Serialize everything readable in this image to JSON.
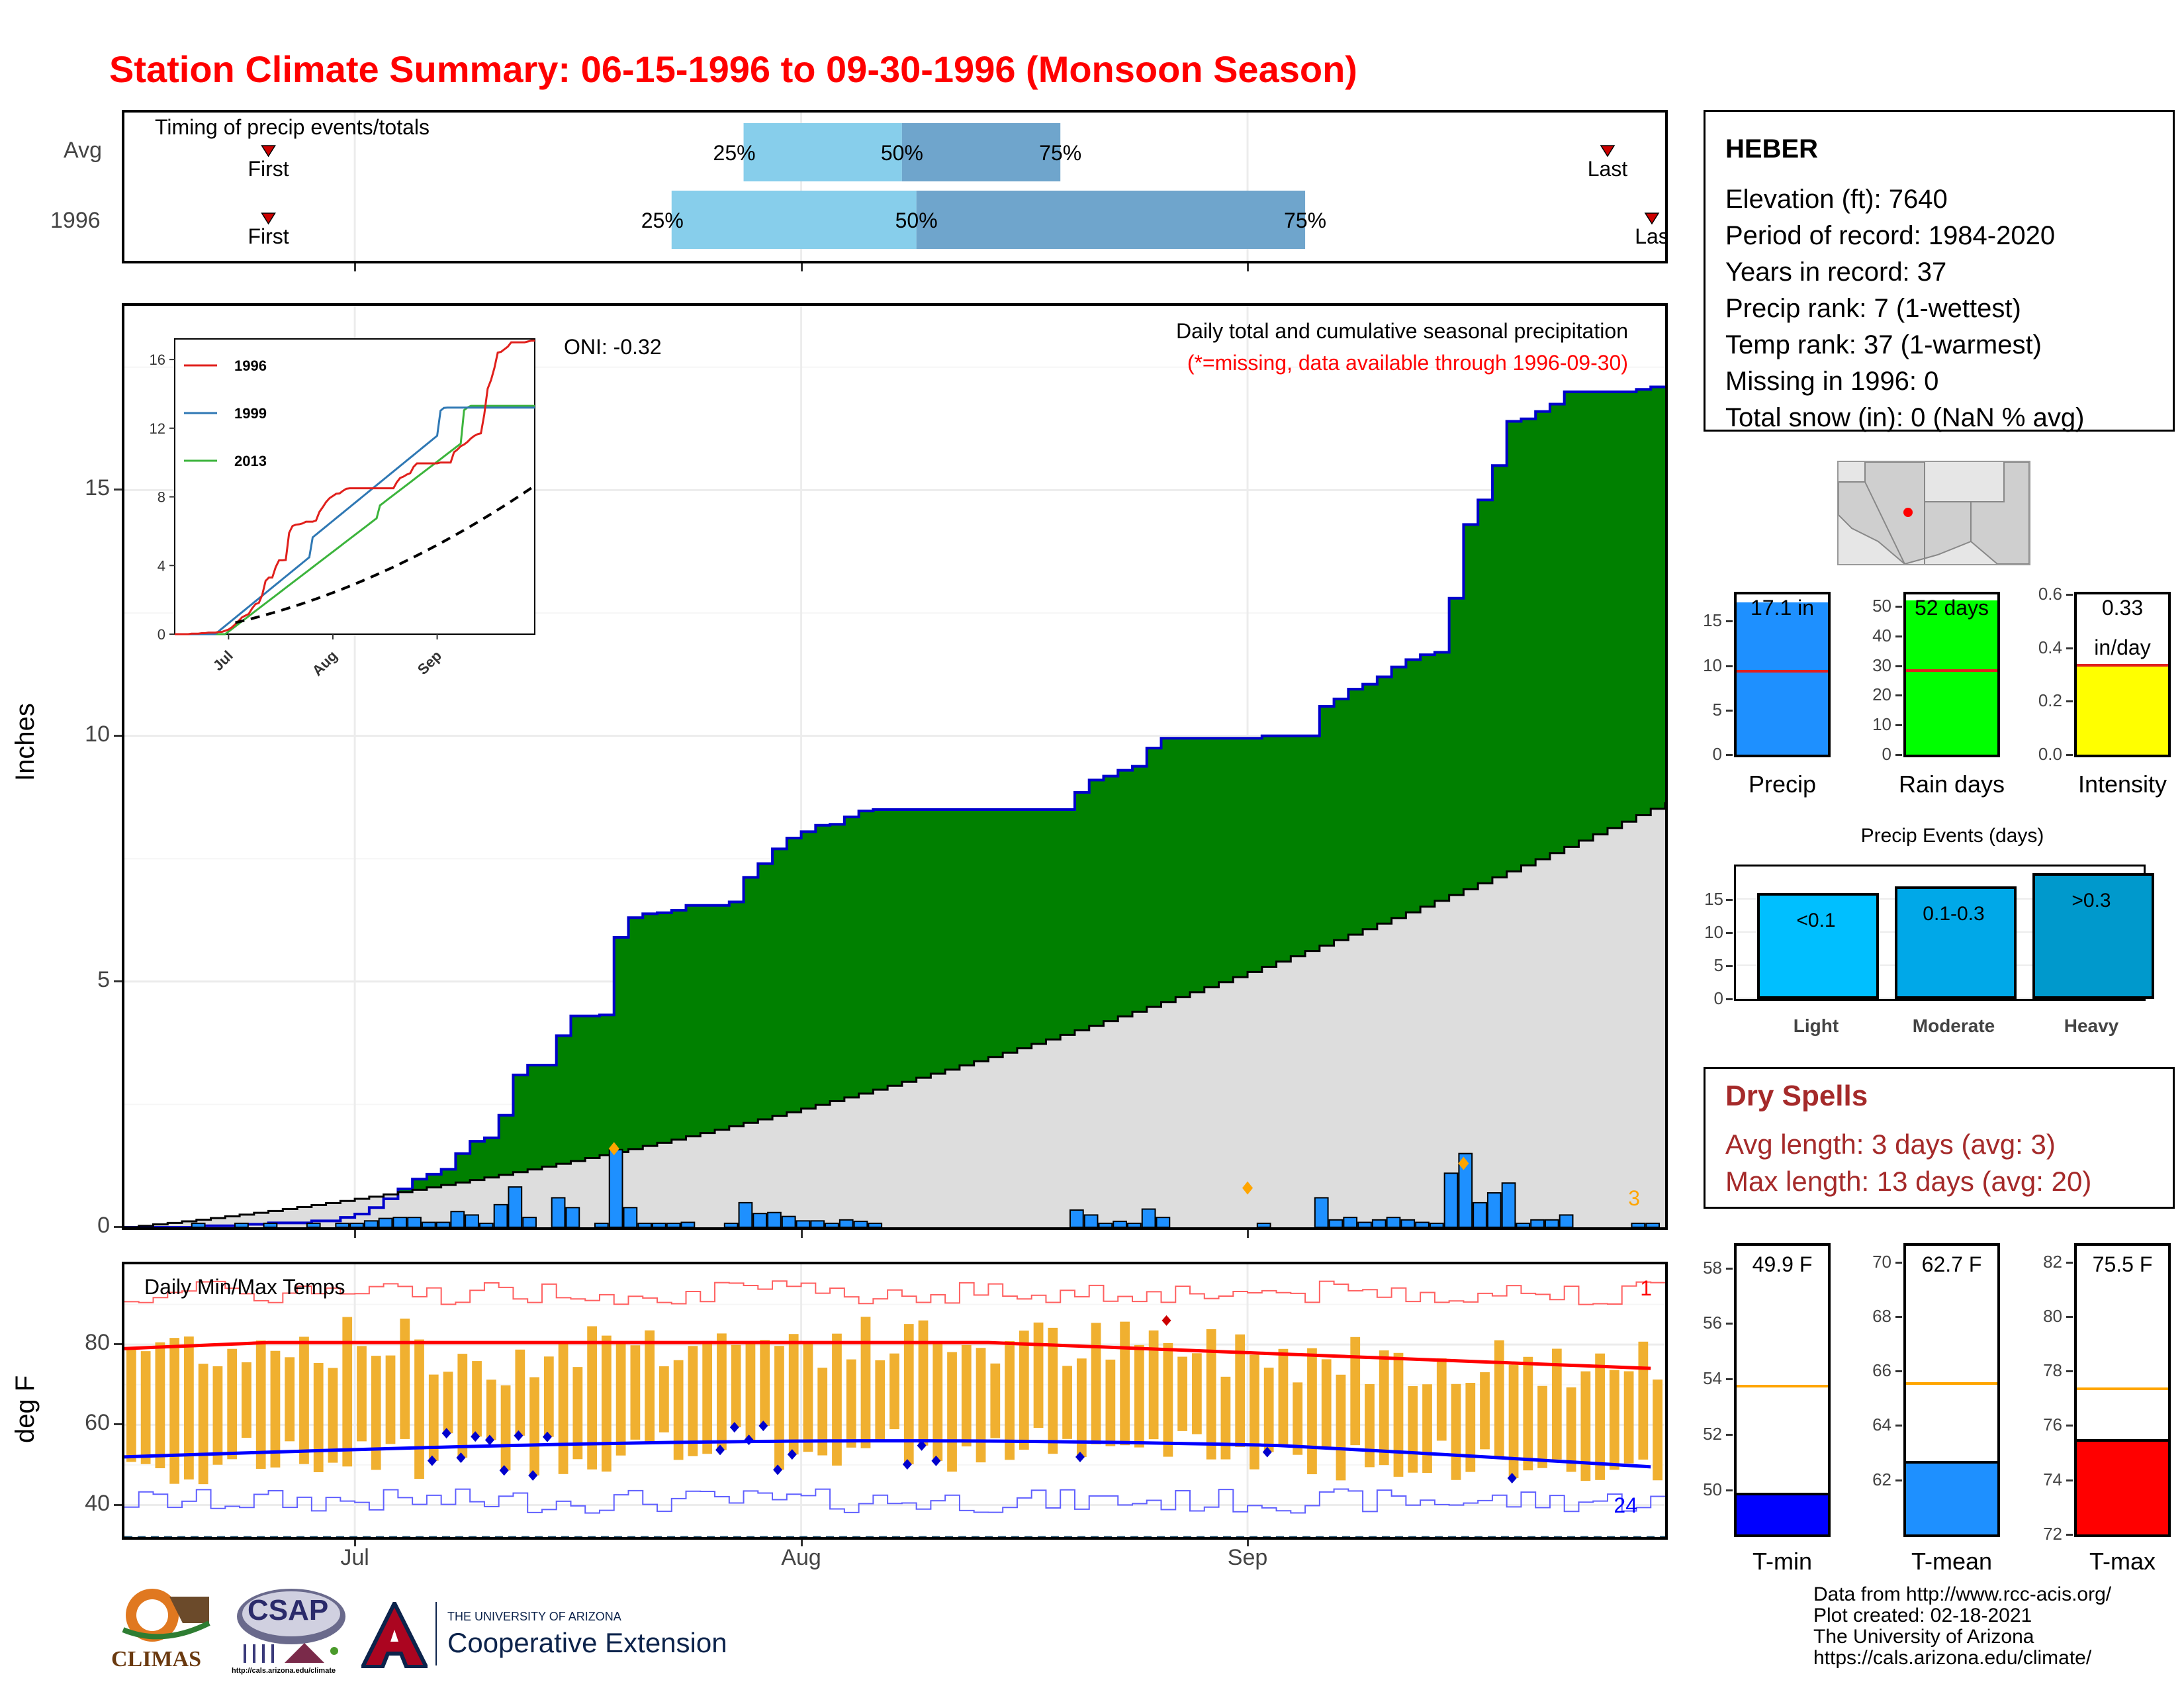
{
  "title": "Station Climate Summary: 06-15-1996 to 09-30-1996 (Monsoon Season)",
  "colors": {
    "title": "#ff0000",
    "cum_1996": "#008000",
    "cum_avg": "#dddddd",
    "bar": "#1e90ff",
    "tmax": "#ff0000",
    "tmin": "#0000ff",
    "temp_range": "#f0b030",
    "q_light": "#87ceeb",
    "q_dark": "#6fa5cc"
  },
  "timing": {
    "label": "Timing of precip events/totals",
    "rows": [
      {
        "name": "Avg",
        "first": "06-25",
        "p25": "07-28",
        "p50": "08-08",
        "p75": "08-19",
        "last": "09-26",
        "first_label": "First",
        "last_label": "Last",
        "l25": "25%",
        "l50": "50%",
        "l75": "75%"
      },
      {
        "name": "1996",
        "first": "06-25",
        "p25": "07-23",
        "p50": "08-09",
        "p75": "09-05",
        "last": "09-30",
        "first_label": "First",
        "last_label": "Las",
        "l25": "25%",
        "l50": "50%",
        "l75": "75%"
      }
    ]
  },
  "main": {
    "ylabel": "Inches",
    "yticks": [
      "0",
      "5",
      "10",
      "15"
    ],
    "oni": "ONI: -0.32",
    "legend_title": "Daily total and cumulative seasonal precipitation",
    "legend_note": "(*=missing, data available through 1996-09-30)",
    "corner_count": "3",
    "xticks": [
      "Jul",
      "Aug",
      "Sep"
    ]
  },
  "inset": {
    "yticks": [
      "0",
      "4",
      "8",
      "12",
      "16"
    ],
    "xticks": [
      "Jul",
      "Aug",
      "Sep"
    ],
    "series": [
      "1996",
      "1999",
      "2013"
    ]
  },
  "temps": {
    "label": "Daily Min/Max Temps",
    "ylabel": "deg F",
    "yticks": [
      "40",
      "60",
      "80"
    ],
    "xticks": [
      "Jul",
      "Aug",
      "Sep"
    ],
    "count_max": "1",
    "count_min": "24"
  },
  "station": {
    "name": "HEBER",
    "lines": [
      "Elevation (ft): 7640",
      "Period of record: 1984-2020",
      "Years in record: 37",
      "Precip rank: 7 (1-wettest)",
      "Temp rank: 37 (1-warmest)",
      "Missing in 1996: 0",
      "Total snow (in): 0 (NaN % avg)"
    ]
  },
  "summary_bars": [
    {
      "name": "Precip",
      "value": 17.1,
      "avg": 9.2,
      "label": "17.1 in",
      "yticks": [
        "0",
        "5",
        "10",
        "15"
      ],
      "ymax": 18,
      "color": "#1e90ff"
    },
    {
      "name": "Rain days",
      "value": 52,
      "avg": 28,
      "label": "52 days",
      "yticks": [
        "0",
        "10",
        "20",
        "30",
        "40",
        "50"
      ],
      "ymax": 54,
      "color": "#00ff00"
    },
    {
      "name": "Intensity",
      "value": 0.33,
      "avg": 0.33,
      "label": "0.33",
      "label2": "in/day",
      "yticks": [
        "0.0",
        "0.2",
        "0.4",
        "0.6"
      ],
      "ymax": 0.6,
      "color": "#ffff00"
    }
  ],
  "precip_events": {
    "title": "Precip Events (days)",
    "yticks": [
      "0",
      "5",
      "10",
      "15"
    ],
    "bars": [
      {
        "name": "Light",
        "label": "<0.1",
        "value": 16,
        "color": "#00bfff"
      },
      {
        "name": "Moderate",
        "label": "0.1-0.3",
        "value": 17,
        "color": "#00a8e8"
      },
      {
        "name": "Heavy",
        "label": ">0.3",
        "value": 19,
        "color": "#0099cc"
      }
    ]
  },
  "dry_spells": {
    "title": "Dry Spells",
    "avg": "Avg length: 3 days (avg: 3)",
    "max": "Max length: 13 days (avg: 20)"
  },
  "temp_summary": [
    {
      "name": "T-min",
      "value": 49.9,
      "avg": 53.7,
      "label": "49.9 F",
      "yticks": [
        "50",
        "52",
        "54",
        "56",
        "58"
      ],
      "ymin": 48.4,
      "ymax": 58.8,
      "color": "#0000ff"
    },
    {
      "name": "T-mean",
      "value": 62.7,
      "avg": 65.5,
      "label": "62.7 F",
      "yticks": [
        "62",
        "64",
        "66",
        "68",
        "70"
      ],
      "ymin": 60.0,
      "ymax": 70.6,
      "color": "#1e90ff"
    },
    {
      "name": "T-max",
      "value": 75.5,
      "avg": 77.3,
      "label": "75.5 F",
      "yticks": [
        "72",
        "74",
        "76",
        "78",
        "80",
        "82"
      ],
      "ymin": 72.0,
      "ymax": 82.6,
      "color": "#ff0000"
    }
  ],
  "footer": [
    "Data from http://www.rcc-acis.org/",
    "Plot created: 02-18-2021",
    "The University of Arizona",
    "https://cals.arizona.edu/climate/"
  ],
  "logos": {
    "climas": "CLIMAS",
    "csap": "CSAP",
    "csap_url": "http://cals.arizona.edu/climate",
    "ua_top": "THE UNIVERSITY OF ARIZONA",
    "ua_bottom": "Cooperative Extension"
  }
}
